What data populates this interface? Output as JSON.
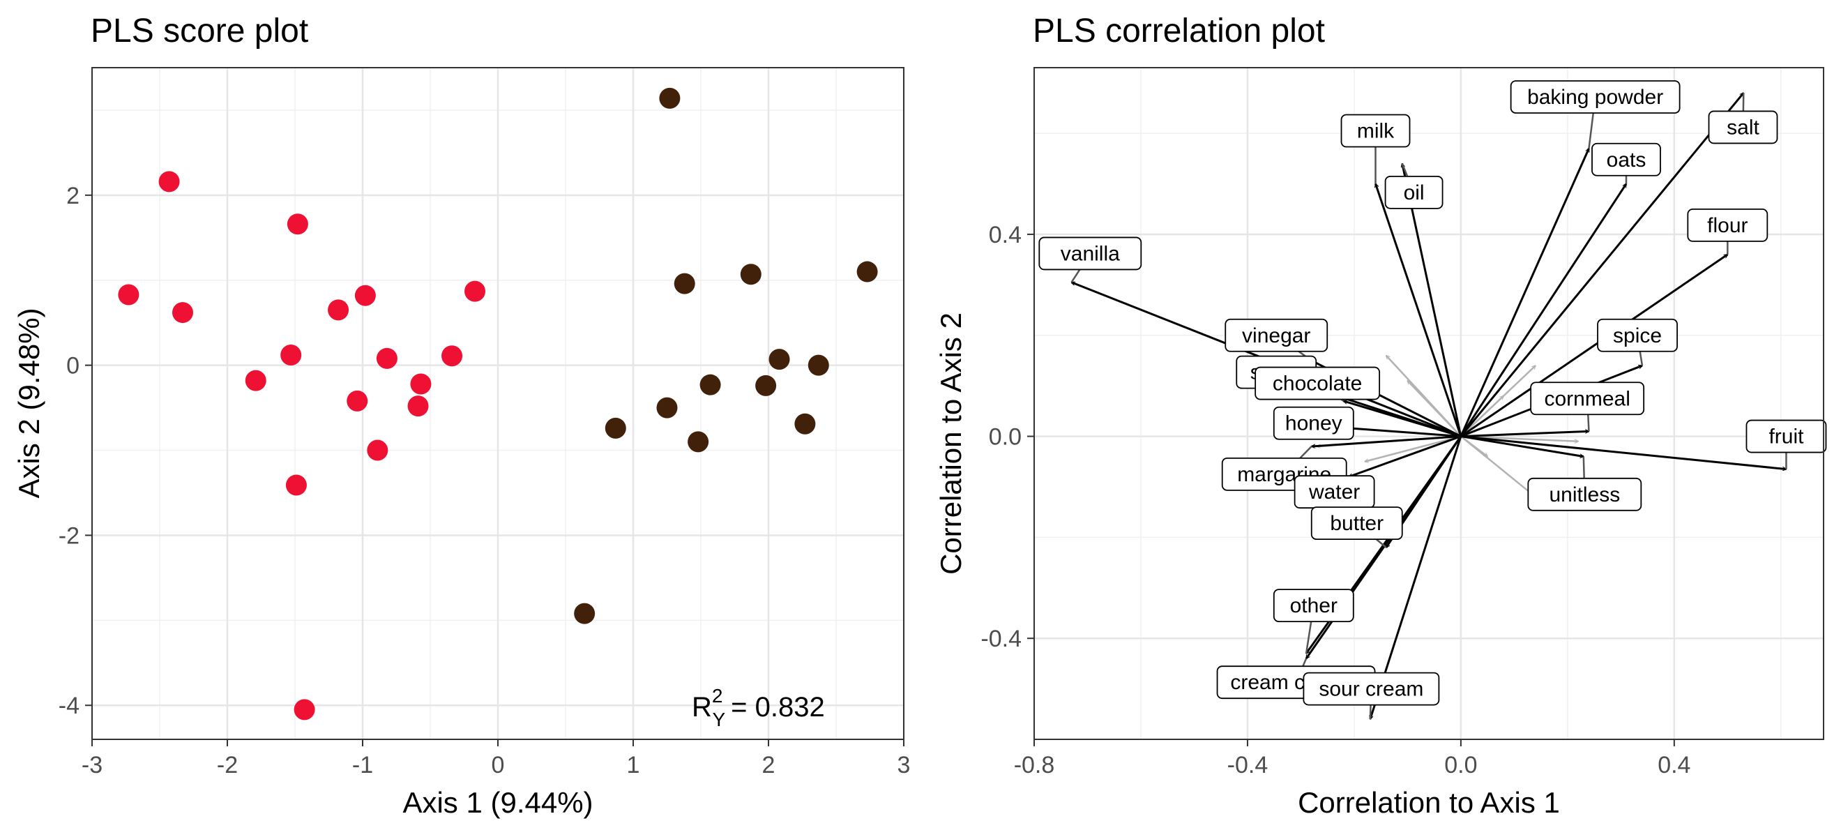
{
  "chart_data": [
    {
      "type": "scatter",
      "title": "PLS score plot",
      "xlabel": "Axis 1 (9.44%)",
      "ylabel": "Axis 2 (9.48%)",
      "xlim": [
        -3,
        3
      ],
      "ylim": [
        -4.4,
        3.5
      ],
      "x_ticks": [
        -3,
        -2,
        -1,
        0,
        1,
        2,
        3
      ],
      "y_ticks": [
        -4,
        -2,
        0,
        2
      ],
      "x_tick_labels": [
        "-3",
        "-2",
        "-1",
        "0",
        "1",
        "2",
        "3"
      ],
      "y_tick_labels": [
        "-4",
        "-2",
        "0",
        "2"
      ],
      "grid": true,
      "annotation": {
        "prefix": "R",
        "sup": "2",
        "sub": "Y",
        "value": "= 0.832",
        "x": 1.5,
        "y": -4.0
      },
      "series": [
        {
          "color": "#ee1133",
          "points": [
            [
              -2.73,
              0.83
            ],
            [
              -2.43,
              2.16
            ],
            [
              -2.33,
              0.62
            ],
            [
              -1.79,
              -0.18
            ],
            [
              -1.53,
              0.12
            ],
            [
              -1.48,
              1.66
            ],
            [
              -1.49,
              -1.41
            ],
            [
              -1.43,
              -4.05
            ],
            [
              -1.18,
              0.65
            ],
            [
              -1.04,
              -0.42
            ],
            [
              -0.98,
              0.82
            ],
            [
              -0.89,
              -1.0
            ],
            [
              -0.82,
              0.08
            ],
            [
              -0.59,
              -0.48
            ],
            [
              -0.57,
              -0.22
            ],
            [
              -0.34,
              0.11
            ],
            [
              -0.17,
              0.87
            ]
          ]
        },
        {
          "color": "#42210b",
          "points": [
            [
              0.64,
              -2.92
            ],
            [
              0.87,
              -0.74
            ],
            [
              1.25,
              -0.5
            ],
            [
              1.27,
              3.14
            ],
            [
              1.38,
              0.96
            ],
            [
              1.48,
              -0.9
            ],
            [
              1.57,
              -0.23
            ],
            [
              1.87,
              1.07
            ],
            [
              1.98,
              -0.24
            ],
            [
              2.08,
              0.07
            ],
            [
              2.27,
              -0.69
            ],
            [
              2.37,
              0.0
            ],
            [
              2.73,
              1.1
            ]
          ]
        }
      ]
    },
    {
      "type": "biplot",
      "title": "PLS correlation plot",
      "xlabel": "Correlation to Axis 1",
      "ylabel": "Correlation to Axis 2",
      "xlim": [
        -0.8,
        0.68
      ],
      "ylim": [
        -0.6,
        0.73
      ],
      "x_ticks": [
        -0.8,
        -0.4,
        0.0,
        0.4
      ],
      "y_ticks": [
        -0.4,
        0.0,
        0.4
      ],
      "x_tick_labels": [
        "-0.8",
        "-0.4",
        "0.0",
        "0.4"
      ],
      "y_tick_labels": [
        "-0.4",
        "0.0",
        "0.4"
      ],
      "grid": true,
      "arrows": [
        {
          "label": "vanilla",
          "x": -0.73,
          "y": 0.305,
          "lx": -0.695,
          "ly": 0.362
        },
        {
          "label": "milk",
          "x": -0.16,
          "y": 0.5,
          "lx": -0.16,
          "ly": 0.605
        },
        {
          "label": "oil",
          "x": -0.11,
          "y": 0.54,
          "lx": -0.088,
          "ly": 0.483
        },
        {
          "label": "baking powder",
          "x": 0.24,
          "y": 0.57,
          "lx": 0.252,
          "ly": 0.672
        },
        {
          "label": "oats",
          "x": 0.31,
          "y": 0.5,
          "lx": 0.31,
          "ly": 0.548
        },
        {
          "label": "salt",
          "x": 0.53,
          "y": 0.68,
          "lx": 0.529,
          "ly": 0.612
        },
        {
          "label": "flour",
          "x": 0.5,
          "y": 0.36,
          "lx": 0.5,
          "ly": 0.418
        },
        {
          "label": "spice",
          "x": 0.34,
          "y": 0.14,
          "lx": 0.331,
          "ly": 0.2
        },
        {
          "label": "cornmeal",
          "x": 0.24,
          "y": 0.01,
          "lx": 0.237,
          "ly": 0.075
        },
        {
          "label": "fruit",
          "x": 0.61,
          "y": -0.065,
          "lx": 0.61,
          "ly": 0.0
        },
        {
          "label": "unitless",
          "x": 0.23,
          "y": -0.04,
          "lx": 0.232,
          "ly": -0.115
        },
        {
          "label": "vinegar",
          "x": -0.28,
          "y": 0.15,
          "lx": -0.346,
          "ly": 0.2
        },
        {
          "label": "sugar",
          "x": -0.29,
          "y": 0.1,
          "lx": -0.346,
          "ly": 0.127
        },
        {
          "label": "chocolate",
          "x": -0.22,
          "y": 0.07,
          "lx": -0.269,
          "ly": 0.105
        },
        {
          "label": "honey",
          "x": -0.26,
          "y": 0.02,
          "lx": -0.276,
          "ly": 0.026
        },
        {
          "label": "margarine",
          "x": -0.28,
          "y": -0.02,
          "lx": -0.331,
          "ly": -0.075
        },
        {
          "label": "water",
          "x": -0.21,
          "y": -0.08,
          "lx": -0.237,
          "ly": -0.11
        },
        {
          "label": "butter",
          "x": -0.14,
          "y": -0.22,
          "lx": -0.195,
          "ly": -0.172
        },
        {
          "label": "other",
          "x": -0.29,
          "y": -0.43,
          "lx": -0.276,
          "ly": -0.335
        },
        {
          "label": "cream cheese",
          "x": -0.29,
          "y": -0.44,
          "lx": -0.309,
          "ly": -0.487
        },
        {
          "label": "sour cream",
          "x": -0.17,
          "y": -0.56,
          "lx": -0.168,
          "ly": -0.5
        }
      ],
      "grey_arrows": [
        [
          -0.14,
          0.16
        ],
        [
          0.14,
          0.14
        ],
        [
          0.08,
          0.08
        ],
        [
          -0.27,
          -0.02
        ],
        [
          0.22,
          -0.01
        ],
        [
          0.14,
          -0.12
        ],
        [
          -0.18,
          -0.05
        ],
        [
          -0.1,
          0.11
        ],
        [
          0.05,
          -0.04
        ]
      ],
      "label_hidden_text": {
        "margarine": "margarine",
        "cream cheese": "cream cheese"
      }
    }
  ]
}
